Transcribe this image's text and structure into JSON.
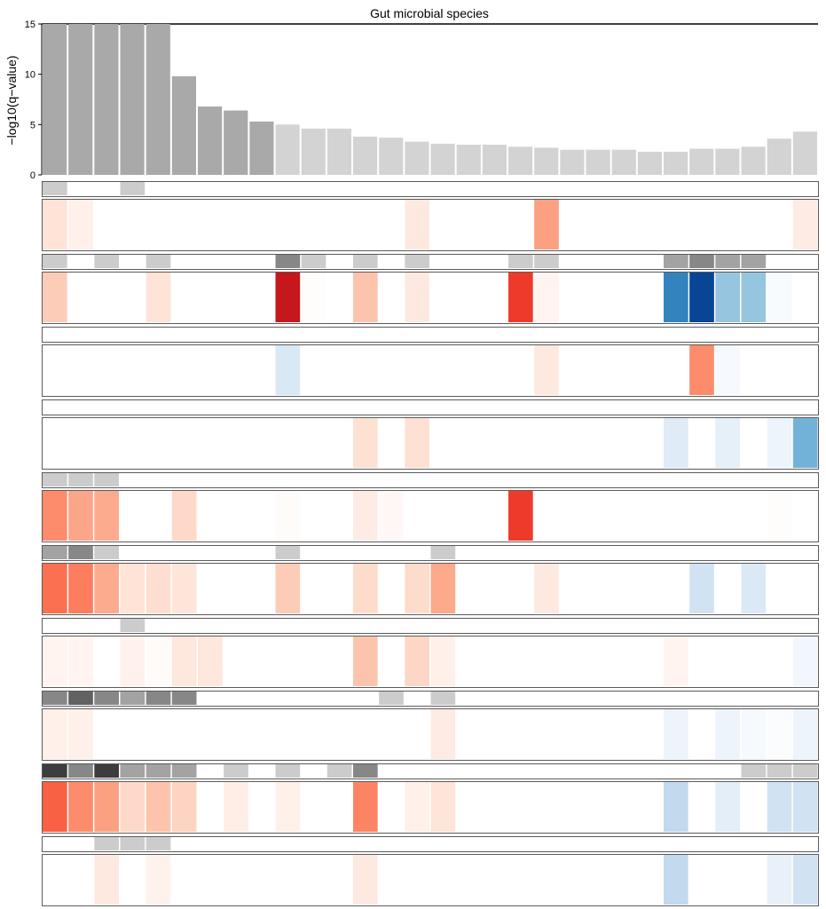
{
  "chart_data": {
    "type": "bar",
    "title": "Gut microbial species",
    "ylabel": "−log10(q−value)",
    "xlabel": "",
    "ylim": [
      0,
      15
    ],
    "yticks": [
      "0",
      "5",
      "10",
      "15"
    ],
    "bar_values": [
      15,
      15,
      15,
      15,
      15,
      9.8,
      6.8,
      6.4,
      5.3,
      5.0,
      4.6,
      4.6,
      3.8,
      3.7,
      3.3,
      3.1,
      3.0,
      3.0,
      2.8,
      2.7,
      2.5,
      2.5,
      2.5,
      2.3,
      2.3,
      2.6,
      2.6,
      2.8,
      3.6,
      4.3
    ],
    "bar_colors": [
      "#a9a9a9",
      "#a9a9a9",
      "#a9a9a9",
      "#a9a9a9",
      "#a9a9a9",
      "#a9a9a9",
      "#a9a9a9",
      "#a9a9a9",
      "#a9a9a9",
      "#d3d3d3",
      "#d3d3d3",
      "#d3d3d3",
      "#d3d3d3",
      "#d3d3d3",
      "#d3d3d3",
      "#d3d3d3",
      "#d3d3d3",
      "#d3d3d3",
      "#d3d3d3",
      "#d3d3d3",
      "#d3d3d3",
      "#d3d3d3",
      "#d3d3d3",
      "#d3d3d3",
      "#d3d3d3",
      "#d3d3d3",
      "#d3d3d3",
      "#d3d3d3",
      "#d3d3d3",
      "#d3d3d3"
    ],
    "annotation_tracks": [
      {
        "gray": [
          0.2,
          0,
          0,
          0.2,
          0,
          0,
          0,
          0,
          0,
          0,
          0,
          0,
          0,
          0,
          0,
          0,
          0,
          0,
          0,
          0,
          0,
          0,
          0,
          0,
          0,
          0,
          0,
          0,
          0,
          0
        ],
        "effect": [
          0.13,
          0.07,
          0,
          0,
          0,
          0,
          0,
          0,
          0,
          0,
          0,
          0,
          0,
          0,
          0.1,
          0,
          0,
          0,
          0,
          0.38,
          0,
          0,
          0,
          0,
          0,
          0,
          0,
          0,
          0,
          0.09
        ]
      },
      {
        "gray": [
          0.2,
          0,
          0.2,
          0,
          0.2,
          0,
          0,
          0,
          0,
          0.47,
          0.2,
          0,
          0.2,
          0,
          0.2,
          0,
          0,
          0,
          0.2,
          0.2,
          0,
          0,
          0,
          0,
          0.36,
          0.47,
          0.36,
          0.36,
          0,
          0
        ],
        "effect": [
          0.22,
          0,
          0,
          0,
          0.13,
          0,
          0,
          0,
          0,
          0.88,
          0.01,
          0,
          0.25,
          0,
          0.1,
          0,
          0,
          0,
          0.72,
          0.05,
          0,
          0,
          0,
          0,
          -0.78,
          -1.0,
          -0.45,
          -0.45,
          -0.03,
          0
        ]
      },
      {
        "gray": [
          0,
          0,
          0,
          0,
          0,
          0,
          0,
          0,
          0,
          0,
          0,
          0,
          0,
          0,
          0,
          0,
          0,
          0,
          0,
          0,
          0,
          0,
          0,
          0,
          0,
          0,
          0,
          0,
          0,
          0
        ],
        "effect": [
          0,
          0,
          0,
          0,
          0,
          0,
          0,
          0,
          0,
          -0.17,
          0,
          0,
          0,
          0,
          0,
          0,
          0,
          0,
          0,
          0.1,
          0,
          0,
          0,
          0,
          0,
          0.45,
          -0.04,
          0,
          0,
          0
        ]
      },
      {
        "gray": [
          0,
          0,
          0,
          0,
          0,
          0,
          0,
          0,
          0,
          0,
          0,
          0,
          0,
          0,
          0,
          0,
          0,
          0,
          0,
          0,
          0,
          0,
          0,
          0,
          0,
          0,
          0,
          0,
          0,
          0
        ],
        "effect": [
          0,
          0,
          0,
          0,
          0,
          0,
          0,
          0,
          0,
          0,
          0,
          0,
          0.14,
          0,
          0.14,
          0,
          0,
          0,
          0,
          0,
          0,
          0,
          0,
          0,
          -0.14,
          0,
          -0.11,
          0,
          -0.08,
          -0.55
        ]
      },
      {
        "gray": [
          0.2,
          0.2,
          0.2,
          0,
          0,
          0,
          0,
          0,
          0,
          0,
          0,
          0,
          0,
          0,
          0,
          0,
          0,
          0,
          0,
          0,
          0,
          0,
          0,
          0,
          0,
          0,
          0,
          0,
          0,
          0
        ],
        "effect": [
          0.45,
          0.36,
          0.34,
          0,
          0,
          0.17,
          0,
          0,
          0,
          0.02,
          0,
          0,
          0.09,
          0.03,
          0,
          0,
          0,
          0,
          0.72,
          0,
          0,
          0,
          0,
          0,
          0,
          0,
          0,
          0,
          0.01,
          0
        ]
      },
      {
        "gray": [
          0.36,
          0.47,
          0.2,
          0,
          0,
          0,
          0,
          0,
          0,
          0.2,
          0,
          0,
          0,
          0,
          0,
          0.2,
          0,
          0,
          0,
          0,
          0,
          0,
          0,
          0,
          0,
          0,
          0,
          0,
          0,
          0
        ],
        "effect": [
          0.55,
          0.5,
          0.34,
          0.13,
          0.15,
          0.12,
          0,
          0,
          0,
          0.22,
          0,
          0,
          0.16,
          0,
          0.16,
          0.35,
          0,
          0,
          0,
          0.1,
          0,
          0,
          0,
          0,
          0,
          -0.22,
          0,
          -0.16,
          0,
          0
        ]
      },
      {
        "gray": [
          0,
          0,
          0,
          0.2,
          0,
          0,
          0,
          0,
          0,
          0,
          0,
          0,
          0,
          0,
          0,
          0,
          0,
          0,
          0,
          0,
          0,
          0,
          0,
          0,
          0,
          0,
          0,
          0,
          0,
          0
        ],
        "effect": [
          0.05,
          0.05,
          0,
          0.06,
          0.02,
          0.11,
          0.11,
          0,
          0,
          0,
          0,
          0,
          0.25,
          0,
          0.18,
          0.07,
          0,
          0,
          0,
          0,
          0,
          0,
          0,
          0,
          0.05,
          0,
          0,
          0,
          0,
          -0.06
        ]
      },
      {
        "gray": [
          0.47,
          0.62,
          0.47,
          0.36,
          0.47,
          0.47,
          0,
          0,
          0,
          0,
          0,
          0,
          0,
          0.2,
          0,
          0.2,
          0,
          0,
          0,
          0,
          0,
          0,
          0,
          0,
          0,
          0,
          0,
          0,
          0,
          0
        ],
        "effect": [
          0.07,
          0.07,
          0,
          0,
          0,
          0,
          0,
          0,
          0,
          0,
          0,
          0,
          0,
          0,
          0,
          0.09,
          0,
          0,
          0,
          0,
          0,
          0,
          0,
          0,
          -0.08,
          0,
          -0.08,
          -0.04,
          -0.02,
          -0.08
        ]
      },
      {
        "gray": [
          0.76,
          0.47,
          0.76,
          0.36,
          0.36,
          0.36,
          0,
          0.2,
          0,
          0.2,
          0,
          0.2,
          0.47,
          0,
          0,
          0,
          0,
          0,
          0,
          0,
          0,
          0,
          0,
          0,
          0,
          0,
          0,
          0.2,
          0.2,
          0.2
        ],
        "effect": [
          0.6,
          0.45,
          0.38,
          0.17,
          0.25,
          0.19,
          0,
          0.08,
          0,
          0.07,
          0,
          0,
          0.48,
          0,
          0.07,
          0.12,
          0,
          0,
          0,
          0,
          0,
          0,
          0,
          0,
          -0.3,
          0,
          -0.12,
          0,
          -0.22,
          -0.22
        ]
      },
      {
        "gray": [
          0,
          0,
          0.2,
          0.2,
          0.2,
          0,
          0,
          0,
          0,
          0,
          0,
          0,
          0,
          0,
          0,
          0,
          0,
          0,
          0,
          0,
          0,
          0,
          0,
          0,
          0,
          0,
          0,
          0,
          0,
          0
        ],
        "effect": [
          0,
          0,
          0.1,
          0,
          0.06,
          0,
          0,
          0,
          0,
          0,
          0,
          0,
          0.1,
          0,
          0,
          0,
          0,
          0,
          0,
          0,
          0,
          0,
          0,
          0,
          -0.3,
          0,
          0,
          0,
          -0.1,
          -0.22
        ]
      }
    ]
  }
}
